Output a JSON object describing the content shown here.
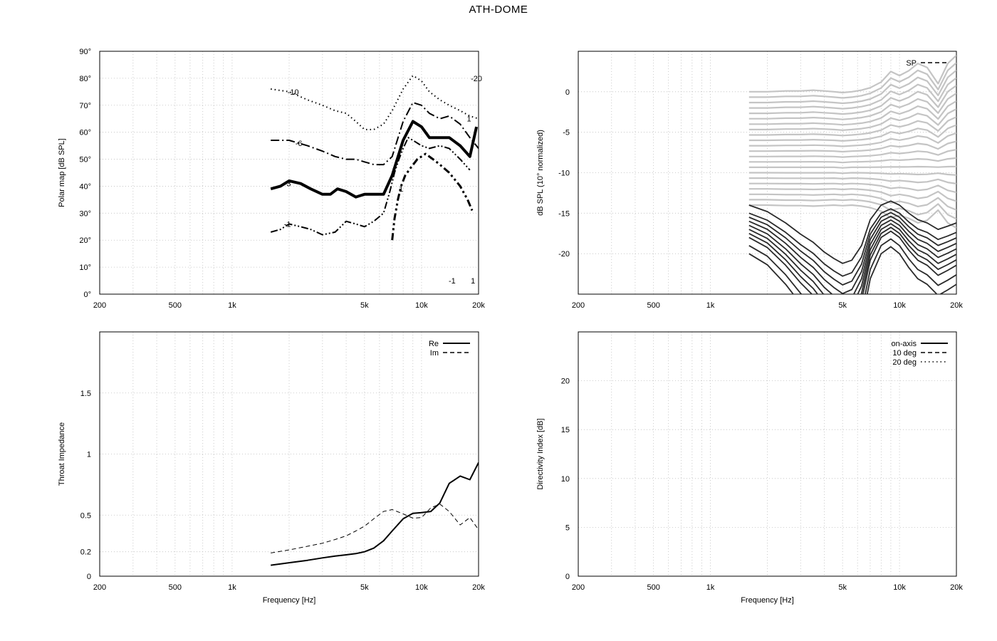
{
  "title": "ATH-DOME",
  "chart_data": [
    {
      "id": "polar",
      "type": "contour",
      "xlabel": "",
      "ylabel": "Polar map [dB SPL]",
      "xscale": "log",
      "xlim": [
        200,
        20000
      ],
      "ylim": [
        0,
        90
      ],
      "x_ticks": [
        200,
        500,
        1000,
        5000,
        10000,
        20000
      ],
      "x_tick_labels": [
        "200",
        "500",
        "1k",
        "5k",
        "10k",
        "20k"
      ],
      "y_ticks": [
        0,
        10,
        20,
        30,
        40,
        50,
        60,
        70,
        80,
        90
      ],
      "y_tick_labels": [
        "0°",
        "10°",
        "20°",
        "30°",
        "40°",
        "50°",
        "60°",
        "70°",
        "80°",
        "90°"
      ],
      "grid": true,
      "series": [
        {
          "level": -10,
          "style": "dotted",
          "width": 2,
          "x": [
            1600,
            2000,
            2500,
            3000,
            3500,
            4000,
            4500,
            5000,
            5600,
            6300,
            7000,
            8000,
            9000,
            10000,
            11000,
            12500,
            14000,
            16000,
            18000,
            20000
          ],
          "y": [
            76,
            75,
            72,
            70,
            68,
            67,
            64,
            61,
            61,
            63,
            68,
            76,
            81,
            79,
            75,
            72,
            70,
            68,
            66,
            65
          ]
        },
        {
          "level": -6,
          "style": "dashdot",
          "width": 2,
          "x": [
            1600,
            2000,
            2500,
            3000,
            3500,
            4000,
            4500,
            5000,
            5600,
            6300,
            7000,
            8000,
            9000,
            10000,
            11000,
            12500,
            14000,
            16000,
            18000,
            20000
          ],
          "y": [
            57,
            57,
            55,
            53,
            51,
            50,
            50,
            49,
            48,
            48,
            51,
            64,
            71,
            70,
            67,
            65,
            66,
            63,
            58,
            54
          ]
        },
        {
          "level": -3,
          "style": "solid",
          "width": 4,
          "x": [
            1600,
            1800,
            2000,
            2300,
            2600,
            3000,
            3300,
            3600,
            4000,
            4500,
            5000,
            5600,
            6300,
            7000,
            8000,
            9000,
            10000,
            11000,
            12500,
            14000,
            16000,
            18000,
            19500
          ],
          "y": [
            39,
            40,
            42,
            41,
            39,
            37,
            37,
            39,
            38,
            36,
            37,
            37,
            37,
            44,
            57,
            64,
            62,
            58,
            58,
            58,
            55,
            51,
            62
          ]
        },
        {
          "level": -1,
          "style": "dashdotdot",
          "width": 2,
          "x": [
            1600,
            1800,
            2000,
            2300,
            2600,
            3000,
            3500,
            4000,
            4500,
            5000,
            5600,
            6300,
            6800,
            7200,
            7600,
            8000,
            8500,
            9000,
            10000,
            11000,
            12500,
            14000,
            16000,
            18000
          ],
          "y": [
            23,
            24,
            26,
            25,
            24,
            22,
            23,
            27,
            26,
            25,
            27,
            30,
            38,
            45,
            50,
            54,
            58,
            57,
            55,
            54,
            55,
            54,
            50,
            46
          ]
        },
        {
          "level": 1,
          "style": "dashdotdot-thick",
          "width": 3,
          "x": [
            7000,
            7200,
            7500,
            7800,
            8200,
            8800,
            9500,
            10500,
            11500,
            12500,
            14000,
            16000,
            17500,
            18500
          ],
          "y": [
            20,
            28,
            35,
            40,
            44,
            47,
            50,
            52,
            50,
            48,
            45,
            40,
            35,
            31
          ]
        }
      ],
      "contour_labels": [
        {
          "text": "-10",
          "x": 2100,
          "y": 75
        },
        {
          "text": "-6",
          "x": 2250,
          "y": 56
        },
        {
          "text": "-3",
          "x": 1960,
          "y": 41
        },
        {
          "text": "-1",
          "x": 1960,
          "y": 26
        },
        {
          "text": "1",
          "x": 7800,
          "y": 39
        },
        {
          "text": "-1",
          "x": 14500,
          "y": 5
        },
        {
          "text": "1",
          "x": 18700,
          "y": 5
        },
        {
          "text": "1",
          "x": 17800,
          "y": 65
        },
        {
          "text": "-20",
          "x": 19500,
          "y": 80
        }
      ]
    },
    {
      "id": "spl",
      "type": "line",
      "xlabel": "",
      "ylabel": "dB SPL (10° normalized)",
      "xscale": "log",
      "xlim": [
        200,
        20000
      ],
      "ylim": [
        -25,
        5
      ],
      "x_ticks": [
        200,
        500,
        1000,
        5000,
        10000,
        20000
      ],
      "x_tick_labels": [
        "200",
        "500",
        "1k",
        "5k",
        "10k",
        "20k"
      ],
      "y_ticks": [
        -20,
        -15,
        -10,
        -5,
        0
      ],
      "y_tick_labels": [
        "-20",
        "-15",
        "-10",
        "-5",
        "0"
      ],
      "grid": true,
      "legend": {
        "position": "top-right",
        "entries": [
          {
            "label": "SP",
            "style": "dashed"
          }
        ]
      },
      "x": [
        1600,
        2000,
        2500,
        3000,
        3500,
        4000,
        4500,
        5000,
        5600,
        6300,
        7000,
        8000,
        9000,
        10000,
        11200,
        12500,
        14000,
        16000,
        18000,
        20000
      ],
      "light_count": 22,
      "light_color": "#c4c4c4",
      "dark_count": 10,
      "dark_color": "#2a2a2a",
      "dark_start": [
        -14,
        -15,
        -15.5,
        -16,
        -16.5,
        -17,
        -17.5,
        -18,
        -19,
        -20
      ],
      "dark_shape": [
        0,
        -0.8,
        -2.2,
        -3.6,
        -4.6,
        -5.8,
        -6.6,
        -7.2,
        -6.8,
        -5.0,
        -1.8,
        0.0,
        0.5,
        0.0,
        -1.0,
        -1.8,
        -2.2,
        -3.0,
        -2.6,
        -2.2
      ],
      "onaxis_shape": [
        0,
        0,
        0.1,
        0.1,
        0.2,
        0.1,
        0.0,
        -0.1,
        0.0,
        0.2,
        0.5,
        1.2,
        2.5,
        2.0,
        2.6,
        3.5,
        3.0,
        1.0,
        3.5,
        4.5
      ]
    },
    {
      "id": "impedance",
      "type": "line",
      "xlabel": "Frequency [Hz]",
      "ylabel": "Throat Impedance",
      "xscale": "log",
      "xlim": [
        200,
        20000
      ],
      "ylim": [
        0,
        2
      ],
      "x_ticks": [
        200,
        500,
        1000,
        5000,
        10000,
        20000
      ],
      "x_tick_labels": [
        "200",
        "500",
        "1k",
        "5k",
        "10k",
        "20k"
      ],
      "y_ticks": [
        0,
        0.2,
        0.5,
        1,
        1.5
      ],
      "y_tick_labels": [
        "0",
        "0.2",
        "0.5",
        "1",
        "1.5"
      ],
      "grid": true,
      "legend": {
        "position": "top-right",
        "entries": [
          {
            "label": "Re",
            "style": "solid"
          },
          {
            "label": "Im",
            "style": "dashed"
          }
        ]
      },
      "series": [
        {
          "name": "Re",
          "style": "solid",
          "x": [
            1600,
            2000,
            2500,
            3000,
            3500,
            4000,
            4500,
            5000,
            5600,
            6300,
            7000,
            8000,
            9000,
            10000,
            11200,
            12500,
            14000,
            16000,
            18000,
            20000
          ],
          "y": [
            0.09,
            0.11,
            0.13,
            0.15,
            0.165,
            0.175,
            0.185,
            0.2,
            0.23,
            0.29,
            0.37,
            0.47,
            0.515,
            0.52,
            0.53,
            0.6,
            0.76,
            0.82,
            0.79,
            0.93
          ]
        },
        {
          "name": "Im",
          "style": "dashed",
          "x": [
            1600,
            2000,
            2500,
            3000,
            3500,
            4000,
            4500,
            5000,
            5600,
            6300,
            7000,
            8000,
            9000,
            10000,
            11200,
            12500,
            14000,
            16000,
            18000,
            20000
          ],
          "y": [
            0.19,
            0.215,
            0.245,
            0.27,
            0.3,
            0.33,
            0.37,
            0.41,
            0.47,
            0.53,
            0.545,
            0.51,
            0.475,
            0.48,
            0.56,
            0.59,
            0.53,
            0.42,
            0.48,
            0.38
          ]
        }
      ]
    },
    {
      "id": "directivity",
      "type": "line",
      "xlabel": "Frequency [Hz]",
      "ylabel": "Directivity Index [dB]",
      "xscale": "log",
      "xlim": [
        200,
        20000
      ],
      "ylim": [
        0,
        25
      ],
      "x_ticks": [
        200,
        500,
        1000,
        5000,
        10000,
        20000
      ],
      "x_tick_labels": [
        "200",
        "500",
        "1k",
        "5k",
        "10k",
        "20k"
      ],
      "y_ticks": [
        0,
        5,
        10,
        15,
        20
      ],
      "y_tick_labels": [
        "0",
        "5",
        "10",
        "15",
        "20"
      ],
      "grid": true,
      "legend": {
        "position": "top-right",
        "entries": [
          {
            "label": "on-axis",
            "style": "solid"
          },
          {
            "label": "10 deg",
            "style": "dashed"
          },
          {
            "label": "20 deg",
            "style": "dotted"
          }
        ]
      },
      "series": []
    }
  ]
}
